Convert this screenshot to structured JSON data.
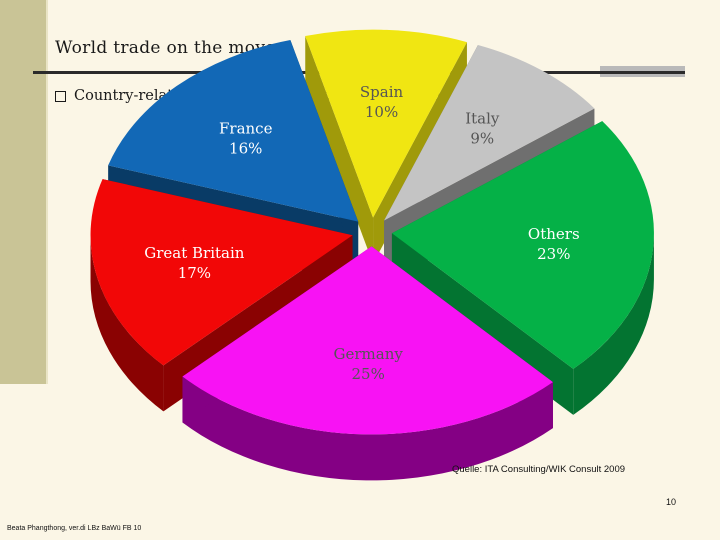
{
  "slide": {
    "title": "World trade on the move",
    "bullet": "Country-related shares in the European express and parcel market",
    "source": "Quelle: ITA Consulting/WIK Consult 2009",
    "page_number": "10",
    "footer": "Beata Phangthong, ver.di LBz BaWü FB 10"
  },
  "chart_data": {
    "type": "pie",
    "style": "3d-exploded",
    "categories": [
      "Spain",
      "Italy",
      "Others",
      "Germany",
      "Great Britain",
      "France"
    ],
    "values": [
      10,
      9,
      23,
      25,
      17,
      16
    ],
    "value_labels": [
      "10%",
      "9%",
      "23%",
      "25%",
      "17%",
      "16%"
    ],
    "colors": [
      "#f0e612",
      "#c4c4c4",
      "#05b147",
      "#f812f4",
      "#f20707",
      "#1268b6"
    ],
    "side_colors": [
      "#a09a0a",
      "#6f6f6f",
      "#037431",
      "#840084",
      "#8a0202",
      "#093b66"
    ],
    "label_colors": [
      "#555555",
      "#555555",
      "#ffffff",
      "#555555",
      "#ffffff",
      "#ffffff"
    ],
    "legend": "none"
  }
}
